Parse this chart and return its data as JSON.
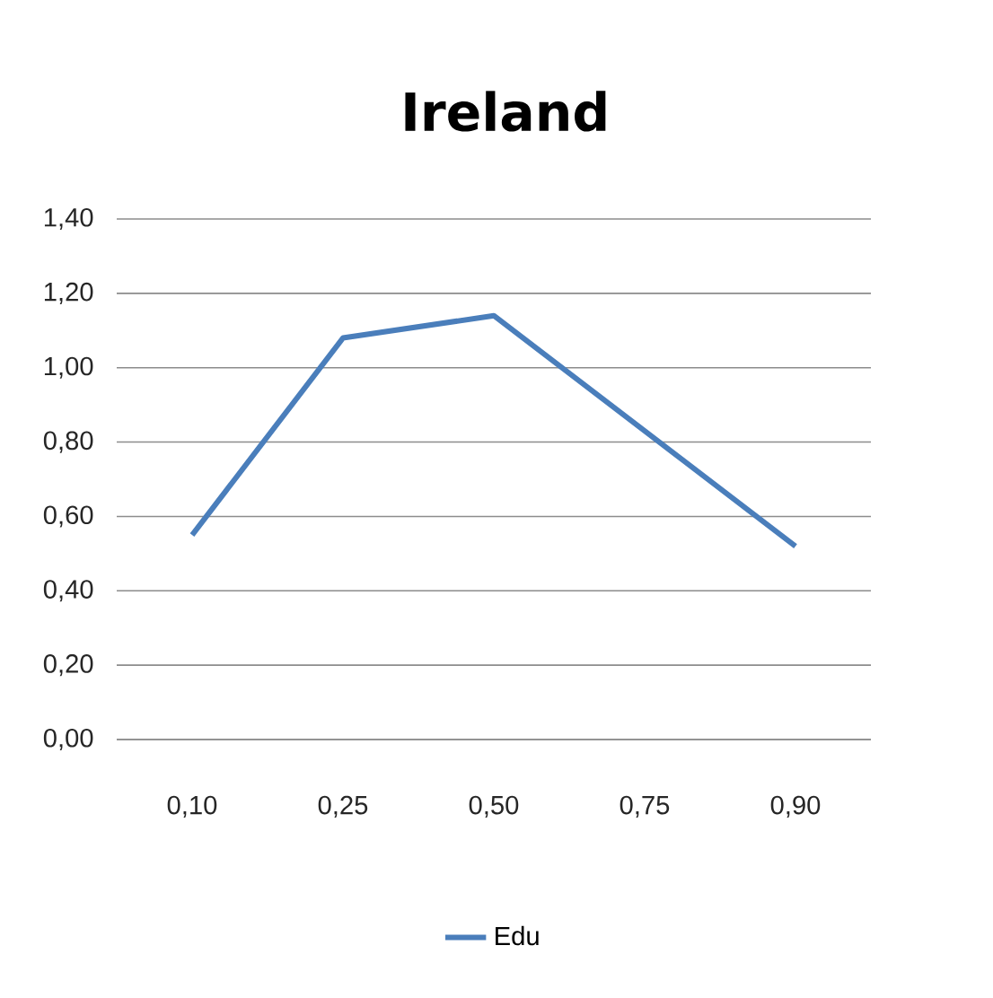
{
  "chart_data": {
    "type": "line",
    "title": "Ireland",
    "categories": [
      "0,10",
      "0,25",
      "0,50",
      "0,75",
      "0,90"
    ],
    "series": [
      {
        "name": "Edu",
        "color": "#4a7ebb",
        "values": [
          0.55,
          1.08,
          1.14,
          0.83,
          0.52
        ]
      }
    ],
    "ylim": [
      0,
      1.4
    ],
    "yticks": [
      {
        "value": 0,
        "label": "0,00"
      },
      {
        "value": 0.2,
        "label": "0,20"
      },
      {
        "value": 0.4,
        "label": "0,40"
      },
      {
        "value": 0.6,
        "label": "0,60"
      },
      {
        "value": 0.8,
        "label": "0,80"
      },
      {
        "value": 1.0,
        "label": "1,00"
      },
      {
        "value": 1.2,
        "label": "1,20"
      },
      {
        "value": 1.4,
        "label": "1,40"
      }
    ],
    "grid": "y",
    "legend": "bottom",
    "marker": "none",
    "line_style": "solid"
  }
}
